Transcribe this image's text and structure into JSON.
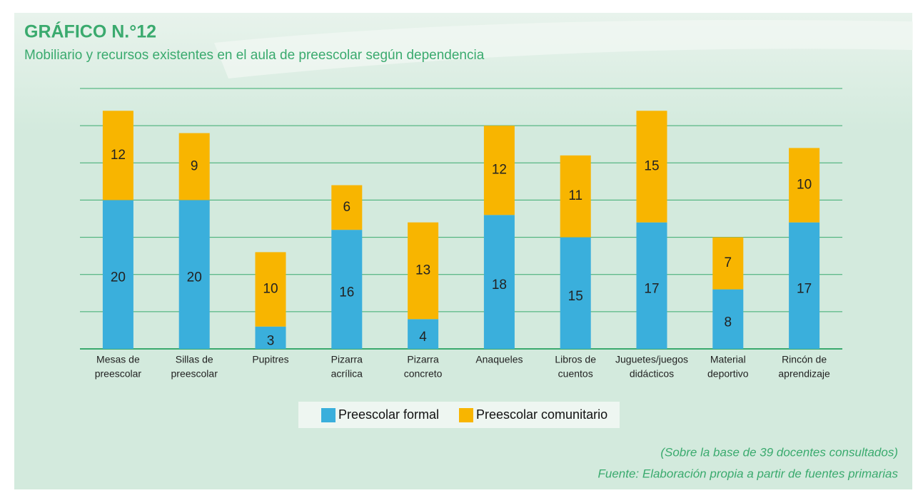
{
  "chart_data": {
    "type": "stacked_bar",
    "title": "GRÁFICO N.°12",
    "subtitle": "Mobiliario y recursos existentes en el aula de preescolar según dependencia",
    "categories": [
      [
        "Mesas de",
        "preescolar"
      ],
      [
        "Sillas de",
        "preescolar"
      ],
      [
        "Pupitres"
      ],
      [
        "Pizarra",
        "acrílica"
      ],
      [
        "Pizarra",
        "concreto"
      ],
      [
        "Anaqueles"
      ],
      [
        "Libros de",
        "cuentos"
      ],
      [
        "Juguetes/juegos",
        "didácticos"
      ],
      [
        "Material",
        "deportivo"
      ],
      [
        "Rincón de",
        "aprendizaje"
      ]
    ],
    "series": [
      {
        "name": "Preescolar formal",
        "color": "#3aafdc",
        "values": [
          20,
          20,
          3,
          16,
          4,
          18,
          15,
          17,
          8,
          17
        ]
      },
      {
        "name": "Preescolar comunitario",
        "color": "#f8b500",
        "values": [
          12,
          9,
          10,
          6,
          13,
          12,
          11,
          15,
          7,
          10
        ]
      }
    ],
    "ylim": [
      0,
      35
    ],
    "yticks": [
      0,
      5,
      10,
      15,
      20,
      25,
      30,
      35
    ],
    "grid": true,
    "notes": [
      "(Sobre la base de 39 docentes consultados)",
      "Fuente: Elaboración propia a partir de fuentes primarias"
    ]
  }
}
